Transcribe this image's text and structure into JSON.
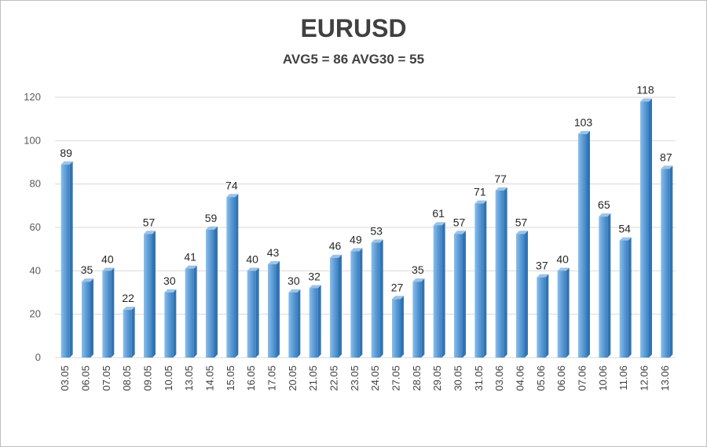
{
  "chart_data": {
    "type": "bar",
    "title": "EURUSD",
    "subtitle": "AVG5 = 86 AVG30 = 55",
    "categories": [
      "03.05",
      "06.05",
      "07.05",
      "08.05",
      "09.05",
      "10.05",
      "13.05",
      "14.05",
      "15.05",
      "16.05",
      "17.05",
      "20.05",
      "21.05",
      "22.05",
      "23.05",
      "24.05",
      "27.05",
      "28.05",
      "29.05",
      "30.05",
      "31.05",
      "03.06",
      "04.06",
      "05.06",
      "06.06",
      "07.06",
      "10.06",
      "11.06",
      "12.06",
      "13.06"
    ],
    "values": [
      89,
      35,
      40,
      22,
      57,
      30,
      41,
      59,
      74,
      40,
      43,
      30,
      32,
      46,
      49,
      53,
      27,
      35,
      61,
      57,
      71,
      77,
      57,
      37,
      40,
      103,
      65,
      54,
      118,
      87
    ],
    "ylim": [
      0,
      120
    ],
    "yticks": [
      0,
      20,
      40,
      60,
      80,
      100,
      120
    ],
    "grid": true,
    "legend": "none",
    "colors": {
      "bar": "#5b9bd5",
      "bar_light": "#9dc3e6",
      "bar_dark": "#2e75b6",
      "grid": "#d9d9d9"
    }
  }
}
